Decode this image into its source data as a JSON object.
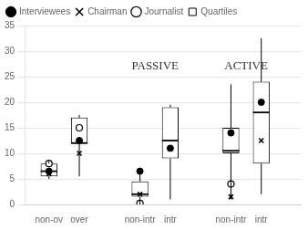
{
  "chart_data": {
    "type": "box",
    "xlim": [
      0.2,
      9.3
    ],
    "xticks": [
      {
        "value": 1,
        "label": "non-ov"
      },
      {
        "value": 2,
        "label": "over"
      },
      {
        "value": 4,
        "label": "non-intr"
      },
      {
        "value": 5,
        "label": "intr"
      },
      {
        "value": 7,
        "label": "non-intr"
      },
      {
        "value": 8,
        "label": "intr"
      }
    ],
    "ylim": [
      0,
      35
    ],
    "yticks": [
      0,
      5,
      10,
      15,
      20,
      25,
      30,
      35
    ],
    "grid": true,
    "legend": "upper left",
    "annotations": [
      {
        "text": "PASSIVE",
        "x": 4.5,
        "y": 27
      },
      {
        "text": "ACTIVE",
        "x": 7.5,
        "y": 27
      }
    ],
    "series": [
      {
        "name": "Quartiles",
        "type": "box",
        "color": "#000000",
        "x": [
          1,
          2,
          4,
          5,
          7,
          8
        ],
        "q1": [
          5.5,
          12.0,
          1.5,
          9.0,
          10.0,
          8.0
        ],
        "median": [
          6.5,
          12.0,
          2.0,
          12.5,
          10.5,
          18.0
        ],
        "q3": [
          8.0,
          17.0,
          4.5,
          19.0,
          15.0,
          24.0
        ],
        "whislo": [
          5.0,
          5.5,
          0.0,
          1.0,
          1.0,
          2.0
        ],
        "whishi": [
          8.5,
          17.5,
          6.5,
          19.5,
          23.5,
          32.5
        ]
      },
      {
        "name": "Interviewees",
        "type": "scatter",
        "marker": "filled_circle",
        "color": "#000000",
        "x": [
          1,
          2,
          4,
          5,
          7,
          8
        ],
        "values": [
          6.5,
          12.5,
          6.5,
          11.0,
          14.0,
          20.0
        ]
      },
      {
        "name": "Chairman",
        "type": "scatter",
        "marker": "x",
        "color": "#000000",
        "x": [
          1,
          2,
          4,
          7,
          8
        ],
        "values": [
          6.0,
          10.0,
          2.0,
          1.5,
          12.5
        ]
      },
      {
        "name": "Journalist",
        "type": "scatter",
        "marker": "open_circle",
        "color": "#000000",
        "x": [
          1,
          2,
          4,
          7
        ],
        "values": [
          8.0,
          15.0,
          0.2,
          4.0
        ]
      }
    ]
  }
}
